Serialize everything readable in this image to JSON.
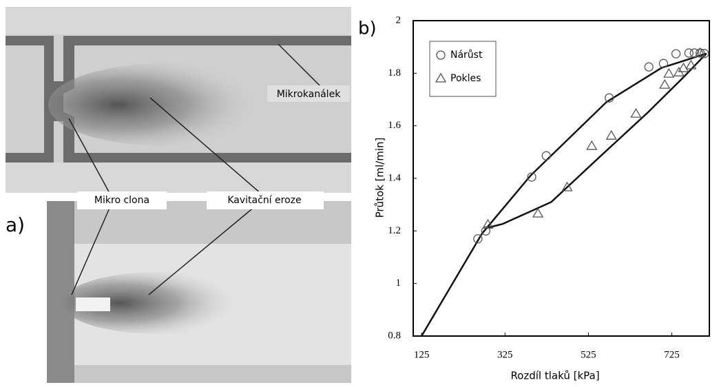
{
  "image_annotations": {
    "panel": "a)",
    "channel": "Mikrokanálek",
    "orifice": "Mikro clona",
    "erosion": "Kavitační eroze"
  },
  "chart_data": {
    "type": "scatter",
    "panel_label": "b)",
    "x_label": "Rozdíl tlaků [kPa]",
    "y_label": "Průtok [ml/min]",
    "xlim": [
      105,
      815
    ],
    "ylim": [
      0.8,
      2
    ],
    "xticks": [
      125,
      325,
      525,
      725
    ],
    "yticks": [
      0.8,
      1,
      1.2,
      1.4,
      1.6,
      1.8,
      2
    ],
    "legend": "top-left",
    "series": [
      {
        "name": "Nárůst",
        "color": "#555555",
        "marker": "circle",
        "x": [
          260,
          279,
          389,
          424,
          575,
          670,
          705,
          735,
          766,
          779,
          793,
          803
        ],
        "values": [
          1.17,
          1.2,
          1.405,
          1.486,
          1.706,
          1.824,
          1.837,
          1.874,
          1.877,
          1.877,
          1.877,
          1.875
        ]
      },
      {
        "name": "Pokles",
        "color": "#555555",
        "marker": "triangle",
        "x": [
          284,
          404,
          474,
          533,
          580,
          639,
          708,
          718,
          742,
          753,
          771,
          793
        ],
        "values": [
          1.224,
          1.266,
          1.366,
          1.523,
          1.562,
          1.646,
          1.756,
          1.798,
          1.803,
          1.819,
          1.83,
          1.877
        ]
      }
    ],
    "fit_lines": [
      {
        "color": "#111111",
        "x": [
          125,
          270,
          386,
          568,
          700,
          808
        ],
        "values": [
          0.8,
          1.19,
          1.41,
          1.69,
          1.82,
          1.875
        ]
      },
      {
        "color": "#111111",
        "x": [
          279,
          320,
          436,
          551,
          667,
          750,
          808
        ],
        "values": [
          1.21,
          1.227,
          1.31,
          1.48,
          1.65,
          1.78,
          1.875
        ]
      }
    ]
  }
}
